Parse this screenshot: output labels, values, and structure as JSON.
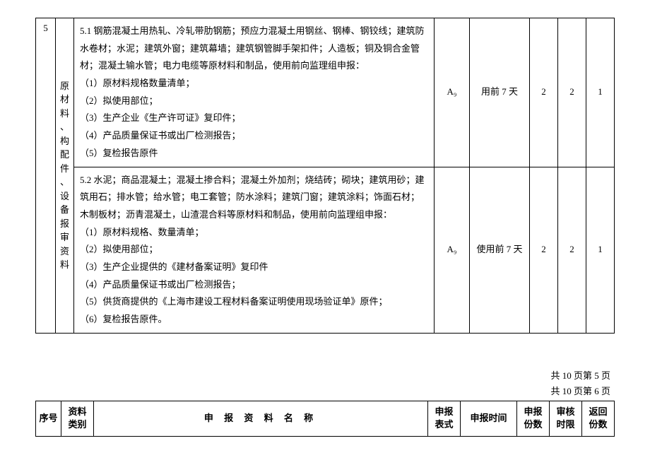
{
  "mainTable": {
    "seq": "5",
    "category": "原材料、构配件、设备报审资料",
    "row1": {
      "content": "5.1 钢筋混凝土用热轧、冷轧带肋钢筋；预应力混凝土用钢丝、钢棒、钢铰线；建筑防水卷材；水泥；建筑外窗；建筑幕墙；建筑钢管脚手架扣件；人造板；铜及铜合金管材；混凝土输水管；电力电缆等原材料和制品，使用前向监理组申报：\n（1）原材料规格数量清单；\n（2）拟使用部位；\n（3）生产企业《生产许可证》复印件；\n（4）产品质量保证书或出厂检测报告；\n（5）复检报告原件",
      "form": "A₉",
      "time": "用前 7 天",
      "copies": "2",
      "review": "2",
      "return": "1"
    },
    "row2": {
      "content": "5.2 水泥；商品混凝土；混凝土掺合料；混凝土外加剂；烧结砖；砌块；建筑用砂；建筑用石；排水管；给水管；电工套管；防水涂料；建筑门窗；建筑涂料；饰面石材；木制板材；沥青混凝土，山渣混合料等原材料和制品，使用前向监理组申报：\n（1）原材料规格、数量清单；\n（2）拟使用部位；\n（3）生产企业提供的《建材备案证明》复印件\n（4）产品质量保证书或出厂检测报告；\n（5）供货商提供的《上海市建设工程材料备案证明使用现场验证单》原件；\n（6）复检报告原件。",
      "form": "A₉",
      "time": "使用前 7 天",
      "copies": "2",
      "review": "2",
      "return": "1"
    }
  },
  "pageInfo1": "共 10 页第 5 页",
  "pageInfo2": "共 10 页第 6 页",
  "headerTable": {
    "seq": "序号",
    "category": "资料类别",
    "name": "申 报 资 料 名 称",
    "form": "申报表式",
    "time": "申报时间",
    "copies": "申报份数",
    "review": "审核时限",
    "return": "返回份数"
  }
}
